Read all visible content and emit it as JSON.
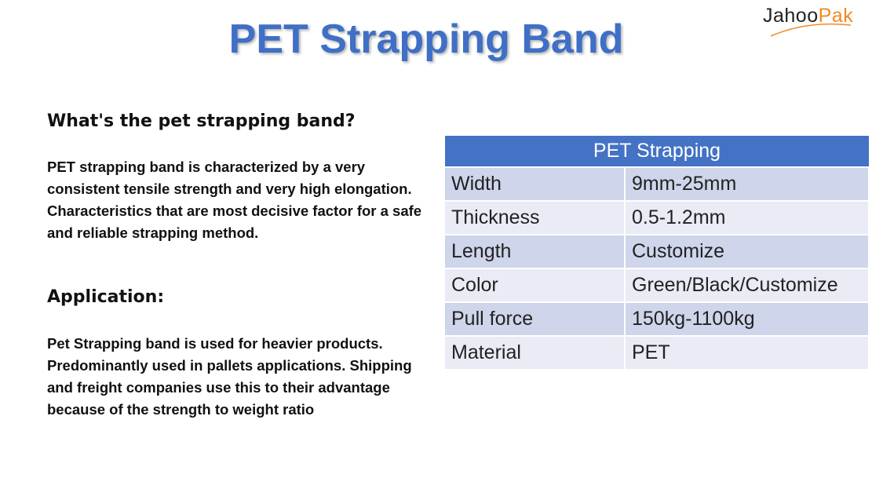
{
  "logo": {
    "first": "Jahoo",
    "second": "Pak"
  },
  "title": "PET Strapping Band",
  "sections": [
    {
      "heading": "What's the pet strapping band?",
      "text": "PET strapping band is characterized by a very consistent tensile strength and very high elongation. Characteristics that are most decisive factor for a safe and reliable strapping method."
    },
    {
      "heading": "Application:",
      "text": "Pet Strapping band is used for heavier products. Predominantly used in pallets applications. Shipping and freight companies use this to their advantage because of the strength to weight ratio"
    }
  ],
  "table": {
    "header": "PET Strapping",
    "rows": [
      [
        "Width",
        "9mm-25mm"
      ],
      [
        "Thickness",
        "0.5-1.2mm"
      ],
      [
        "Length",
        "Customize"
      ],
      [
        "Color",
        "Green/Black/Customize"
      ],
      [
        "Pull force",
        "150kg-1100kg"
      ],
      [
        "Material",
        "PET"
      ]
    ]
  }
}
